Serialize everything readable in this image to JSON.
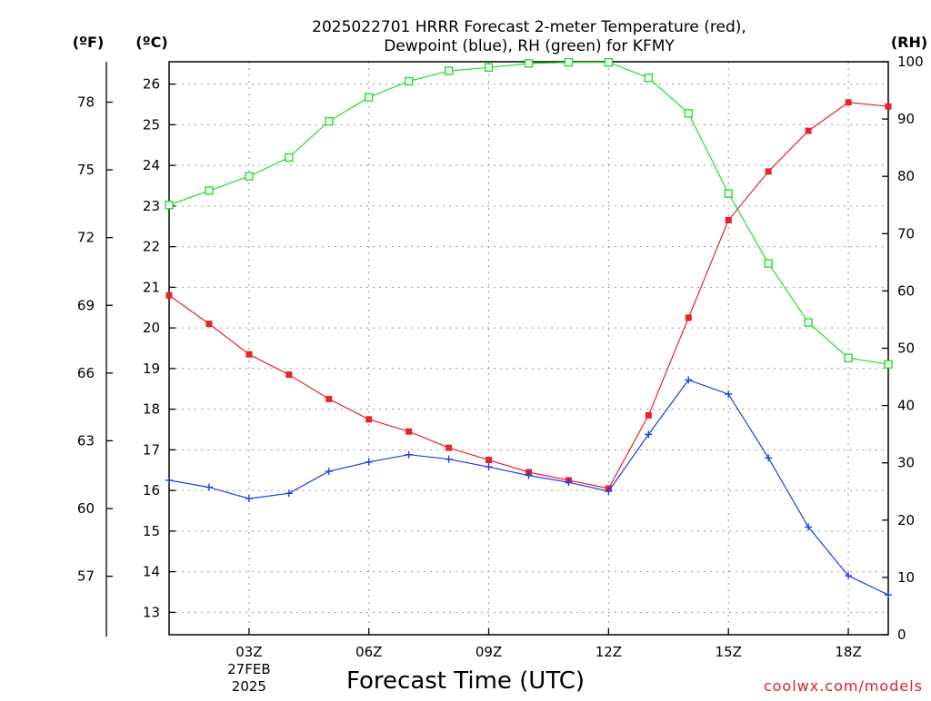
{
  "chart_data": {
    "type": "line",
    "title_line1": "2025022701 HRRR Forecast 2-meter Temperature (red),",
    "title_line2": "Dewpoint (blue), RH (green) for KFMY",
    "xlabel": "Forecast Time (UTC)",
    "credit": "coolwx.com/models",
    "left_outer_unit": "(ºF)",
    "left_inner_unit": "(ºC)",
    "right_unit": "(RH)",
    "x_hours": [
      1,
      2,
      3,
      4,
      5,
      6,
      7,
      8,
      9,
      10,
      11,
      12,
      13,
      14,
      15,
      16,
      17,
      18,
      19
    ],
    "xlim": [
      1,
      19
    ],
    "x_ticks": [
      {
        "hour": 3,
        "label": "03Z",
        "date_line1": "27FEB",
        "date_line2": "2025"
      },
      {
        "hour": 6,
        "label": "06Z"
      },
      {
        "hour": 9,
        "label": "09Z"
      },
      {
        "hour": 12,
        "label": "12Z"
      },
      {
        "hour": 15,
        "label": "15Z"
      },
      {
        "hour": 18,
        "label": "18Z"
      }
    ],
    "ylim_c": [
      12.45,
      26.55
    ],
    "y_ticks_c": [
      "13",
      "14",
      "15",
      "16",
      "17",
      "18",
      "19",
      "20",
      "21",
      "22",
      "23",
      "24",
      "25",
      "26"
    ],
    "y_ticks_f": [
      "57",
      "60",
      "63",
      "66",
      "69",
      "72",
      "75",
      "78"
    ],
    "ylim_rh": [
      0,
      100
    ],
    "y_ticks_rh": [
      "0",
      "10",
      "20",
      "30",
      "40",
      "50",
      "60",
      "70",
      "80",
      "90",
      "100"
    ],
    "grid": true,
    "series": [
      {
        "name": "Temperature",
        "color": "#e8232d",
        "marker": "filled-square",
        "axis": "c",
        "values": [
          20.8,
          20.1,
          19.35,
          18.85,
          18.25,
          17.75,
          17.45,
          17.05,
          16.75,
          16.45,
          16.25,
          16.05,
          17.85,
          20.25,
          22.65,
          23.85,
          24.85,
          25.55,
          25.45
        ]
      },
      {
        "name": "Dewpoint",
        "color": "#1f3cf0",
        "marker": "plus",
        "axis": "c",
        "values": [
          16.25,
          16.08,
          15.8,
          15.93,
          16.47,
          16.7,
          16.88,
          16.77,
          16.58,
          16.37,
          16.2,
          15.98,
          17.38,
          18.72,
          18.37,
          16.8,
          15.1,
          13.9,
          13.43
        ]
      },
      {
        "name": "RH",
        "color": "#22e02a",
        "marker": "open-square",
        "axis": "rh",
        "values": [
          75,
          77.5,
          80,
          83.3,
          89.6,
          93.8,
          96.6,
          98.4,
          99,
          99.7,
          99.9,
          99.9,
          97.2,
          91,
          77,
          64.8,
          54.5,
          48.3,
          47.2
        ]
      }
    ]
  }
}
